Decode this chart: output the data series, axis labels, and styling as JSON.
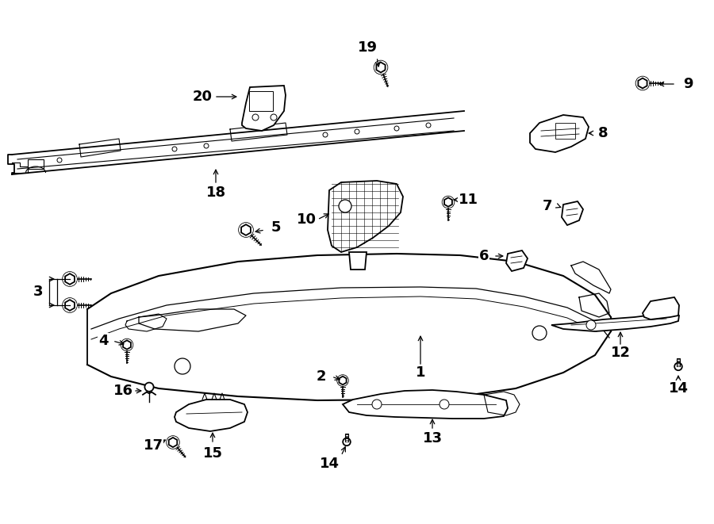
{
  "background_color": "#ffffff",
  "fig_width": 9.0,
  "fig_height": 6.61,
  "dpi": 100,
  "line_color": "#000000",
  "label_fontsize": 13,
  "label_fontsize_small": 11
}
